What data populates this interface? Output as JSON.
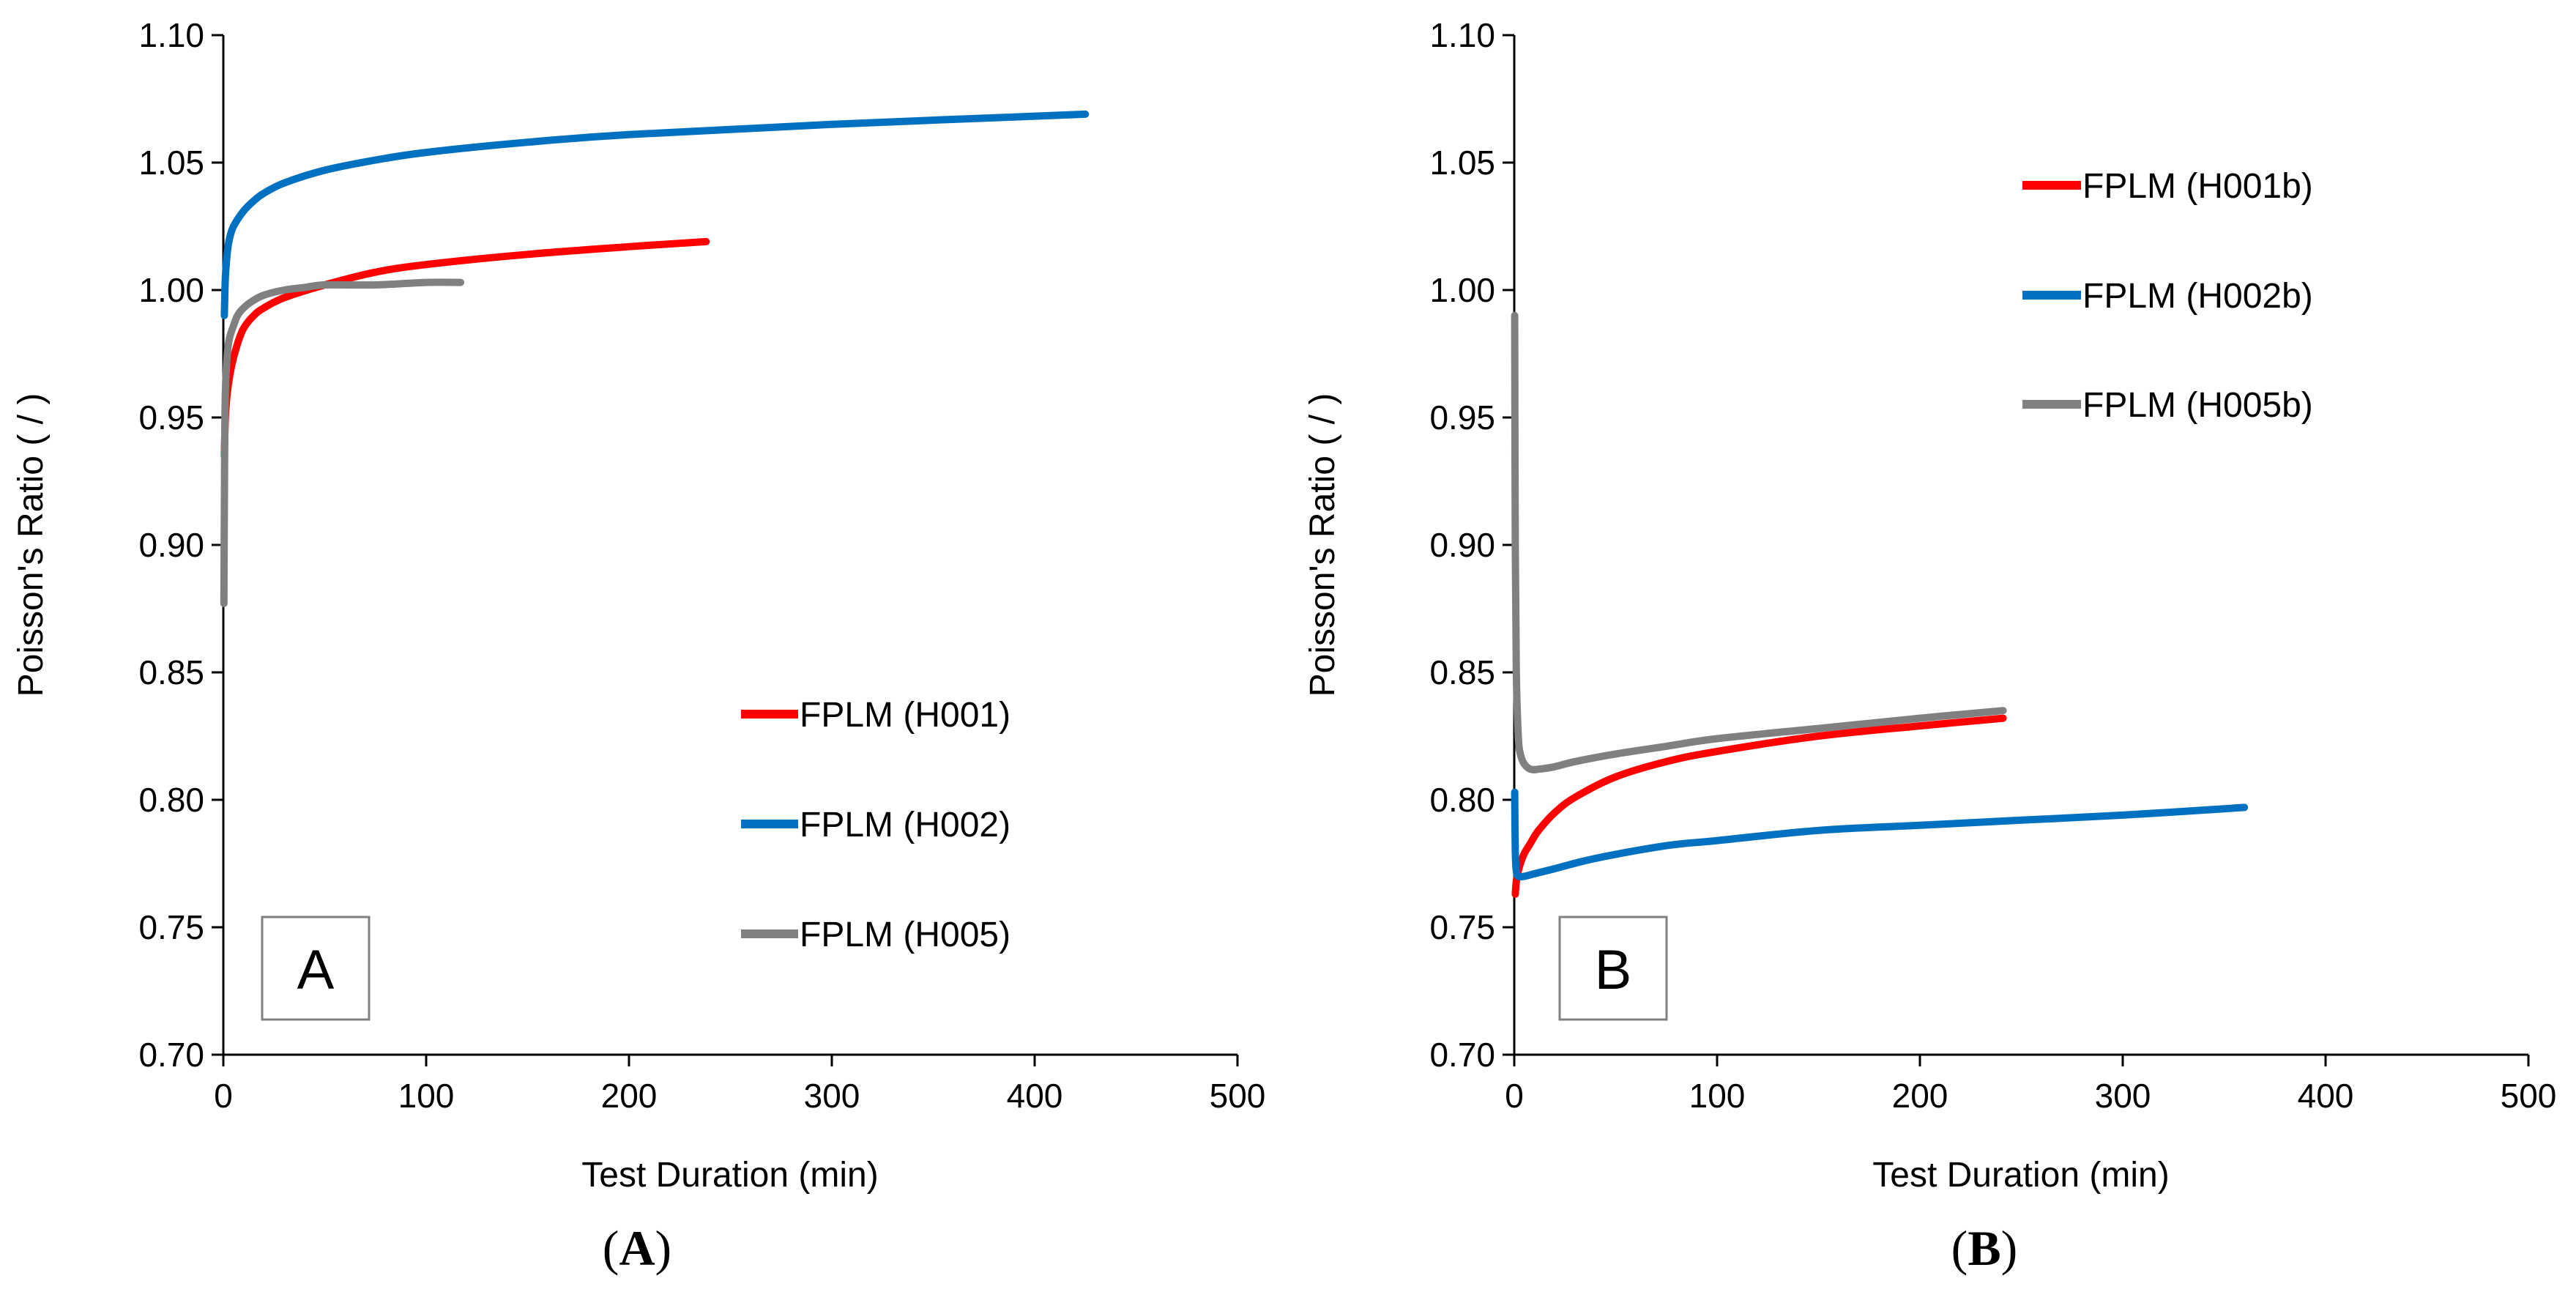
{
  "chart_data": [
    {
      "type": "line",
      "panel_label": "A",
      "caption_open": "(",
      "caption_letter": "A",
      "caption_close": ")",
      "xlabel": "Test Duration (min)",
      "ylabel": "Poisson's Ratio ( / )",
      "xlim": [
        0,
        500
      ],
      "ylim": [
        0.7,
        1.1
      ],
      "xticks": [
        "0",
        "100",
        "200",
        "300",
        "400",
        "500"
      ],
      "yticks": [
        "0.70",
        "0.75",
        "0.80",
        "0.85",
        "0.90",
        "0.95",
        "1.00",
        "1.05",
        "1.10"
      ],
      "grid": false,
      "legend_position": "bottom-right",
      "series": [
        {
          "name": "FPLM (H001)",
          "color": "#ff0000",
          "x": [
            0.5,
            1,
            2,
            4,
            7,
            10,
            15,
            20,
            30,
            50,
            75,
            100,
            150,
            200,
            238
          ],
          "y": [
            0.935,
            0.95,
            0.96,
            0.97,
            0.979,
            0.985,
            0.99,
            0.993,
            0.997,
            1.002,
            1.007,
            1.01,
            1.014,
            1.017,
            1.019
          ]
        },
        {
          "name": "FPLM (H002)",
          "color": "#0070c0",
          "x": [
            0.5,
            1,
            2,
            3,
            5,
            10,
            15,
            20,
            30,
            50,
            75,
            100,
            150,
            200,
            300,
            425
          ],
          "y": [
            0.99,
            1.005,
            1.015,
            1.02,
            1.025,
            1.031,
            1.035,
            1.038,
            1.042,
            1.047,
            1.051,
            1.054,
            1.058,
            1.061,
            1.065,
            1.069
          ]
        },
        {
          "name": "FPLM (H005)",
          "color": "#808080",
          "x": [
            0.3,
            0.6,
            1,
            2,
            3,
            5,
            7,
            10,
            15,
            20,
            30,
            40,
            50,
            75,
            100,
            117
          ],
          "y": [
            0.877,
            0.93,
            0.96,
            0.975,
            0.981,
            0.986,
            0.99,
            0.993,
            0.996,
            0.998,
            1.0,
            1.001,
            1.002,
            1.002,
            1.003,
            1.003
          ]
        }
      ]
    },
    {
      "type": "line",
      "panel_label": "B",
      "caption_open": "(",
      "caption_letter": "B",
      "caption_close": ")",
      "xlabel": "Test Duration (min)",
      "ylabel": "Poisson's Ratio ( / )",
      "xlim": [
        0,
        500
      ],
      "ylim": [
        0.7,
        1.1
      ],
      "xticks": [
        "0",
        "100",
        "200",
        "300",
        "400",
        "500"
      ],
      "yticks": [
        "0.70",
        "0.75",
        "0.80",
        "0.85",
        "0.90",
        "0.95",
        "1.00",
        "1.05",
        "1.10"
      ],
      "grid": false,
      "legend_position": "top-right",
      "series": [
        {
          "name": "FPLM (H001b)",
          "color": "#ff0000",
          "x": [
            0.5,
            1,
            2,
            3,
            5,
            8,
            12,
            20,
            30,
            50,
            75,
            100,
            150,
            200,
            241
          ],
          "y": [
            0.763,
            0.768,
            0.772,
            0.775,
            0.779,
            0.783,
            0.788,
            0.795,
            0.801,
            0.809,
            0.815,
            0.819,
            0.825,
            0.829,
            0.832
          ]
        },
        {
          "name": "FPLM (H002b)",
          "color": "#0070c0",
          "x": [
            0.2,
            0.5,
            1,
            2,
            5,
            10,
            20,
            40,
            75,
            100,
            150,
            200,
            250,
            300,
            360
          ],
          "y": [
            0.803,
            0.78,
            0.772,
            0.77,
            0.77,
            0.771,
            0.773,
            0.777,
            0.782,
            0.784,
            0.788,
            0.79,
            0.792,
            0.794,
            0.797
          ]
        },
        {
          "name": "FPLM (H005b)",
          "color": "#808080",
          "x": [
            0.2,
            0.5,
            1,
            2,
            3,
            5,
            8,
            12,
            20,
            30,
            50,
            75,
            100,
            150,
            200,
            241
          ],
          "y": [
            0.99,
            0.9,
            0.85,
            0.825,
            0.818,
            0.814,
            0.812,
            0.812,
            0.813,
            0.815,
            0.818,
            0.821,
            0.824,
            0.828,
            0.832,
            0.835
          ]
        }
      ]
    }
  ]
}
